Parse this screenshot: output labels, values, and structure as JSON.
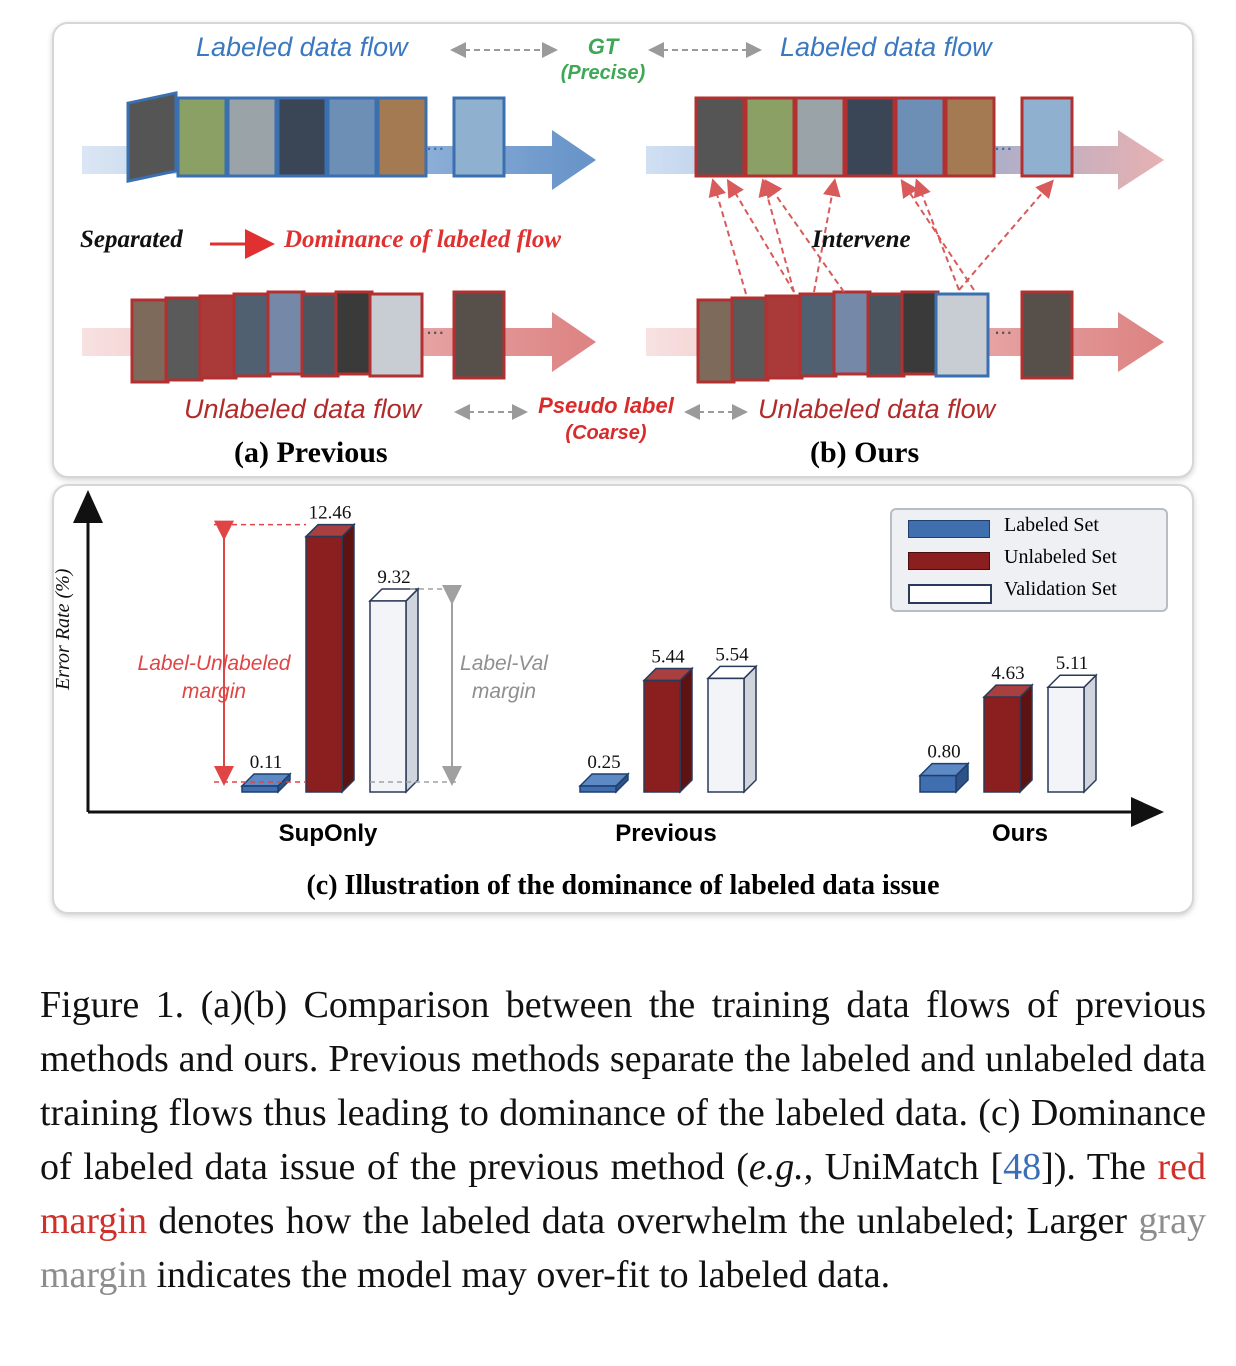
{
  "panel_top": {
    "labeled_flow_left": "Labeled data flow",
    "labeled_flow_right": "Labeled data flow",
    "gt_label": "GT",
    "gt_sub": "(Precise)",
    "separated": "Separated",
    "dominance": "Dominance of labeled flow",
    "intervene": "Intervene",
    "unlabeled_flow_left": "Unlabeled data flow",
    "unlabeled_flow_right": "Unlabeled data flow",
    "pseudo_label": "Pseudo label",
    "pseudo_sub": "(Coarse)",
    "ellipsis": "...",
    "caption_a": "(a) Previous",
    "caption_b": "(b) Ours"
  },
  "chart_data": {
    "type": "bar",
    "title": "(c) Illustration of the dominance of labeled data issue",
    "ylabel": "Error Rate (%)",
    "xlabel": "",
    "categories": [
      "SupOnly",
      "Previous",
      "Ours"
    ],
    "series": [
      {
        "name": "Labeled Set",
        "values": [
          0.11,
          0.25,
          0.8
        ],
        "color": "#3f6fae"
      },
      {
        "name": "Unlabeled Set",
        "values": [
          12.46,
          5.44,
          4.63
        ],
        "color": "#8b1f1f"
      },
      {
        "name": "Validation Set",
        "values": [
          9.32,
          5.54,
          5.11
        ],
        "color": "#f2f4f8"
      }
    ],
    "data_labels": [
      [
        "0.11",
        "12.46",
        "9.32"
      ],
      [
        "0.25",
        "5.44",
        "5.54"
      ],
      [
        "0.80",
        "4.63",
        "5.11"
      ]
    ],
    "ylim": [
      0,
      14
    ],
    "legend_position": "top-right",
    "annotations": {
      "red_margin_line1": "Label-Unlabeled",
      "red_margin_line2": "margin",
      "gray_margin_line1": "Label-Val",
      "gray_margin_line2": "margin"
    }
  },
  "caption": {
    "part1": "Figure 1.  (a)(b) Comparison between the training data flows of previous methods and ours. Previous methods separate the labeled and unlabeled data training flows thus leading to dominance of the labeled data. (c) Dominance of labeled data issue of the previous method (",
    "eg": "e.g.",
    "part2": ", UniMatch [",
    "ref": "48",
    "part3": "]). The ",
    "red_margin": "red margin",
    "part4": " denotes how the labeled data overwhelm the unlabeled; Larger ",
    "gray_margin": "gray margin",
    "part5": " indicates the model may over-fit to labeled data."
  },
  "colors": {
    "labeled_blue": "#3f6fae",
    "unlabeled_red": "#8b1f1f",
    "validation": "#f2f4f8",
    "margin_red": "#e04545",
    "margin_gray": "#a0a0a0"
  }
}
